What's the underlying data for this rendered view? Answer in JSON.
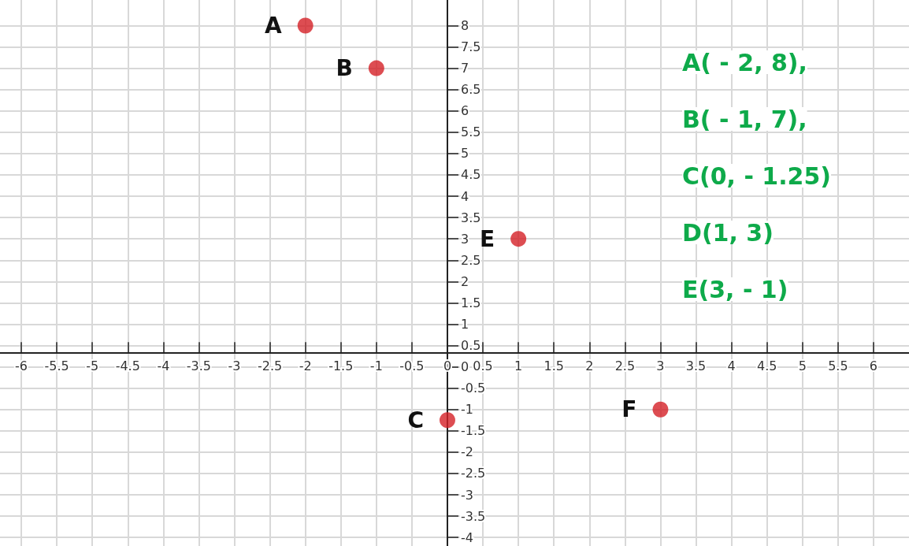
{
  "chart_data": {
    "type": "scatter",
    "x": [
      -2,
      -1,
      0,
      1,
      3
    ],
    "series": [
      {
        "color": "#d42027",
        "values": [
          8,
          7,
          -1.25,
          3,
          -1
        ]
      }
    ],
    "marker": "circle",
    "xlim": [
      -6.3,
      6.5
    ],
    "ylim": [
      -4.2,
      8.6
    ],
    "xticks": [
      -6,
      -5.5,
      -5,
      -4.5,
      -4,
      -3.5,
      -3,
      -2.5,
      -2,
      -1.5,
      -1,
      -0.5,
      0,
      0.5,
      1,
      1.5,
      2,
      2.5,
      3,
      3.5,
      4,
      4.5,
      5,
      5.5,
      6
    ],
    "yticks": [
      -4,
      -3.5,
      -3,
      -2.5,
      -2,
      -1.5,
      -1,
      -0.5,
      0,
      0.5,
      1,
      1.5,
      2,
      2.5,
      3,
      3.5,
      4,
      4.5,
      5,
      5.5,
      6,
      6.5,
      7,
      7.5,
      8
    ],
    "grid": true,
    "annotations": [
      {
        "text": "A",
        "x": -2,
        "y": 8
      },
      {
        "text": "B",
        "x": -1,
        "y": 7
      },
      {
        "text": "C",
        "x": 0,
        "y": -1.25
      },
      {
        "text": "E",
        "x": 1,
        "y": 3
      },
      {
        "text": "F",
        "x": 3,
        "y": -1
      },
      "A( - 2, 8),",
      "B( - 1, 7),",
      "C(0, - 1.25)",
      "D(1, 3)",
      "E(3, - 1)"
    ]
  }
}
